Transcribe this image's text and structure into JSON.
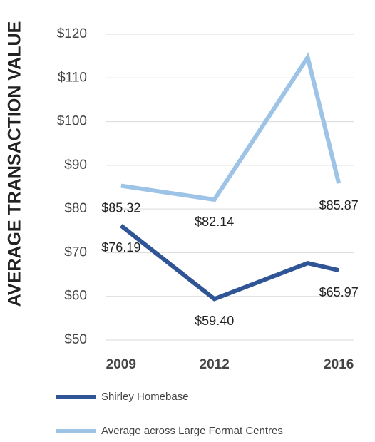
{
  "chart_data": {
    "type": "line",
    "y_label": "AVERAGE TRANSACTION VALUE",
    "x": [
      2009,
      2012,
      2015,
      2016
    ],
    "xlim": [
      2008.5,
      2016.5
    ],
    "xticks": [
      2009,
      2012,
      2016
    ],
    "ylim": [
      50,
      120
    ],
    "yticks": [
      {
        "value": 50,
        "label": "$50"
      },
      {
        "value": 60,
        "label": "$60"
      },
      {
        "value": 70,
        "label": "$70"
      },
      {
        "value": 80,
        "label": "$80"
      },
      {
        "value": 90,
        "label": "$90"
      },
      {
        "value": 100,
        "label": "$100"
      },
      {
        "value": 110,
        "label": "$110"
      },
      {
        "value": 120,
        "label": "$120"
      }
    ],
    "grid": true,
    "legend": "bottom",
    "series": [
      {
        "name": "Shirley Homebase",
        "color": "#2f5597",
        "values": [
          76.19,
          59.4,
          67.6,
          65.97
        ],
        "value_labels": [
          "$76.19",
          "$59.40",
          null,
          "$65.97"
        ]
      },
      {
        "name": "Average across Large Format Centres",
        "color": "#9dc3e6",
        "values": [
          85.32,
          82.14,
          114.7,
          85.87
        ],
        "value_labels": [
          "$85.32",
          "$82.14",
          null,
          "$85.87"
        ]
      }
    ]
  }
}
